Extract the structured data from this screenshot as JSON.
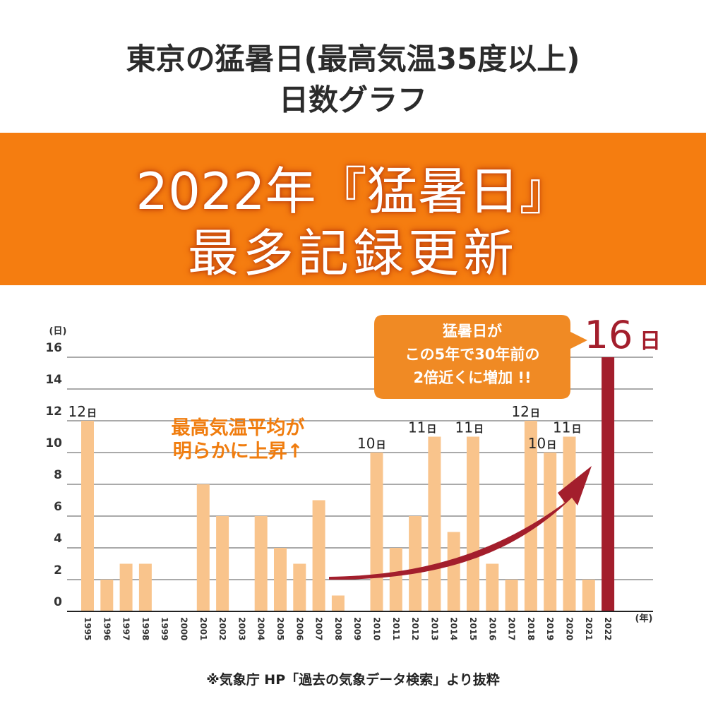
{
  "header": {
    "title_line1": "東京の猛暑日(最高気温35度以上)",
    "title_line2": "日数グラフ"
  },
  "banner": {
    "line1": "2022年『猛暑日』",
    "line2": "最多記録更新"
  },
  "annotations": {
    "callout_line1": "猛暑日が",
    "callout_line2": "この5年で30年前の",
    "callout_line3": "2倍近くに増加 !!",
    "rise_line1": "最高気温平均が",
    "rise_line2": "明らかに上昇↑"
  },
  "footer": {
    "source": "※気象庁 HP「過去の気象データ検索」より抜粋"
  },
  "colors": {
    "bar": "#f9c48c",
    "highlight_bar": "#a31e2c",
    "banner": "#f57d10",
    "callout": "#f08a24",
    "rise_text": "#f07d0f",
    "arrow": "#a31e2c"
  },
  "chart_data": {
    "type": "bar",
    "categories": [
      "1995",
      "1996",
      "1997",
      "1998",
      "1999",
      "2000",
      "2001",
      "2002",
      "2003",
      "2004",
      "2005",
      "2006",
      "2007",
      "2008",
      "2009",
      "2010",
      "2011",
      "2012",
      "2013",
      "2014",
      "2015",
      "2016",
      "2017",
      "2018",
      "2019",
      "2020",
      "2021",
      "2022"
    ],
    "values": [
      12,
      2,
      3,
      3,
      0,
      0,
      8,
      6,
      0,
      6,
      4,
      3,
      7,
      1,
      0,
      10,
      4,
      6,
      11,
      5,
      11,
      3,
      2,
      12,
      10,
      11,
      2,
      16
    ],
    "highlight_category": "2022",
    "ylim": [
      0,
      16
    ],
    "yticks": [
      0,
      2,
      4,
      6,
      8,
      10,
      12,
      14,
      16
    ],
    "y_unit_label": "(日)",
    "x_unit_label": "(年)",
    "grid": true,
    "data_labels": [
      {
        "category": "1995",
        "value": 12,
        "text": "12",
        "suffix": "日"
      },
      {
        "category": "2010",
        "value": 10,
        "text": "10",
        "suffix": "日"
      },
      {
        "category": "2013",
        "value": 11,
        "text": "11",
        "suffix": "日"
      },
      {
        "category": "2015",
        "value": 11,
        "text": "11",
        "suffix": "日"
      },
      {
        "category": "2018",
        "value": 12,
        "text": "12",
        "suffix": "日"
      },
      {
        "category": "2019",
        "value": 10,
        "text": "10",
        "suffix": "日"
      },
      {
        "category": "2020",
        "value": 11,
        "text": "11",
        "suffix": "日"
      },
      {
        "category": "2022",
        "value": 16,
        "text": "16",
        "suffix": "日"
      }
    ]
  }
}
